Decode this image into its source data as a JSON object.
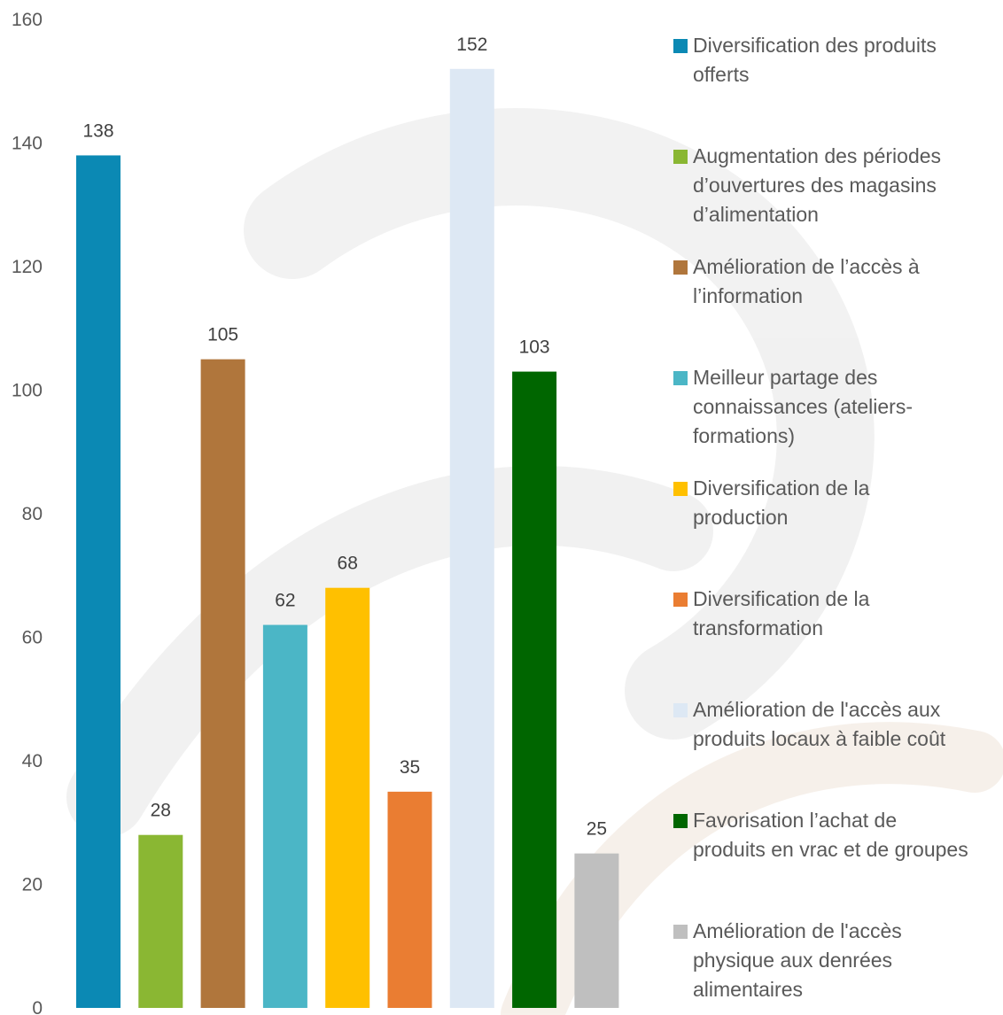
{
  "chart_data": {
    "type": "bar",
    "title": "",
    "xlabel": "",
    "ylabel": "",
    "ylim": [
      0,
      160
    ],
    "yticks": [
      0,
      20,
      40,
      60,
      80,
      100,
      120,
      140,
      160
    ],
    "grid": false,
    "legend_position": "right",
    "categories": [
      "Diversification des produits offerts",
      "Augmentation des périodes d’ouvertures des magasins d’alimentation",
      "Amélioration de l’accès à l’information",
      "Meilleur partage des connaissances (ateliers-formations)",
      "Diversification de la production",
      "Diversification de la transformation",
      "Amélioration de l'accès aux produits locaux à faible coût",
      "Favorisation l’achat de produits en vrac et de groupes",
      "Amélioration de l'accès physique aux denrées alimentaires"
    ],
    "values": [
      138,
      28,
      105,
      62,
      68,
      35,
      152,
      103,
      25
    ],
    "colors": [
      "#0b89b4",
      "#8ab733",
      "#b0763c",
      "#4bb6c6",
      "#ffc000",
      "#ea7d32",
      "#dde8f4",
      "#006600",
      "#bfbfbf"
    ],
    "legend_lines": [
      [
        "Diversification des produits",
        "offerts"
      ],
      [
        "Augmentation des périodes",
        "d’ouvertures des magasins",
        "d’alimentation"
      ],
      [
        "Amélioration de l’accès à",
        "l’information"
      ],
      [
        "Meilleur partage des",
        "connaissances (ateliers-",
        "formations)"
      ],
      [
        "Diversification de la",
        "production"
      ],
      [
        "Diversification de la",
        "transformation"
      ],
      [
        "Amélioration de l'accès aux",
        "produits locaux à faible coût"
      ],
      [
        "Favorisation l’achat de",
        "produits en vrac et de groupes"
      ],
      [
        "Amélioration de l'accès",
        "physique aux denrées",
        "alimentaires"
      ]
    ]
  }
}
